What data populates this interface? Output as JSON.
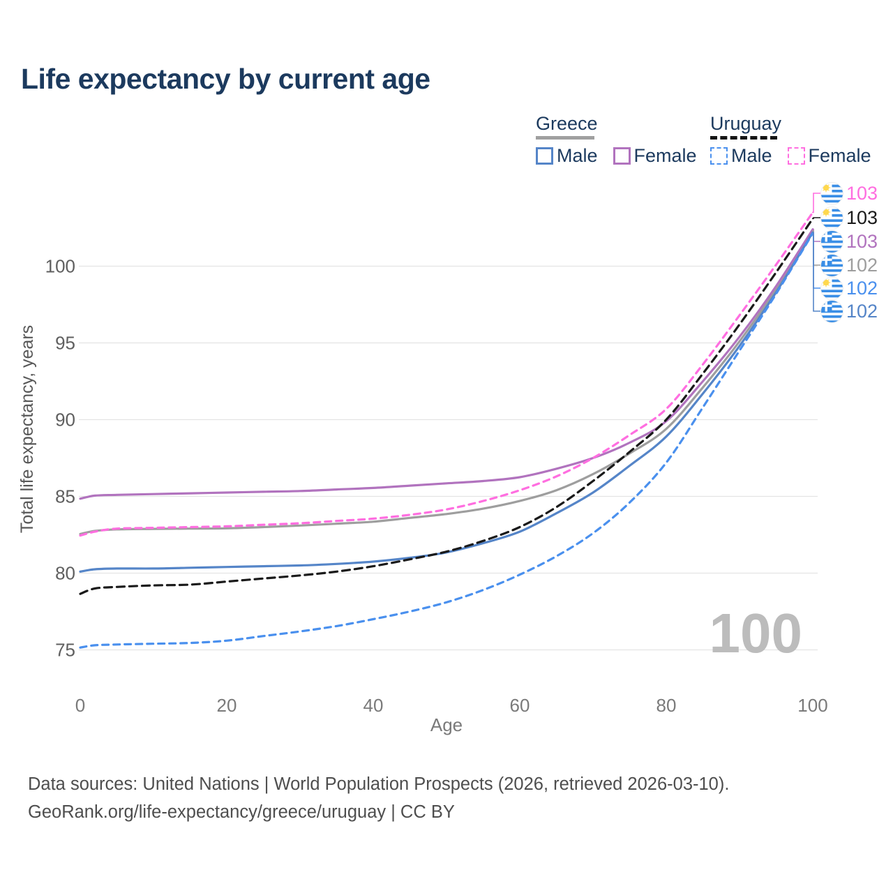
{
  "title": "Life expectancy by current age",
  "legend": {
    "groups": [
      {
        "country": "Greece",
        "line_style": "solid",
        "line_color": "#a0a0a0",
        "items": [
          {
            "label": "Male",
            "color": "#5585c8",
            "dashed": false
          },
          {
            "label": "Female",
            "color": "#b173be",
            "dashed": false
          }
        ]
      },
      {
        "country": "Uruguay",
        "line_style": "dashed",
        "line_color": "#141414",
        "items": [
          {
            "label": "Male",
            "color": "#4a90ee",
            "dashed": true
          },
          {
            "label": "Female",
            "color": "#ff6ee0",
            "dashed": true
          }
        ]
      }
    ]
  },
  "watermark_age": "100",
  "footer": {
    "line1": "Data sources: United Nations | World Population Prospects (2026, retrieved 2026-03-10).",
    "line2": "GeoRank.org/life-expectancy/greece/uruguay | CC BY"
  },
  "chart_data": {
    "type": "line",
    "title": "Life expectancy by current age",
    "xlabel": "Age",
    "ylabel": "Total life expectancy, years",
    "xlim": [
      0,
      100
    ],
    "ylim": [
      73.5,
      104.5
    ],
    "x_ticks": [
      0,
      20,
      40,
      60,
      80,
      100
    ],
    "y_ticks": [
      75,
      80,
      85,
      90,
      95,
      100
    ],
    "grid": "horizontal-only",
    "legend_position": "top-right",
    "x": [
      0,
      2,
      5,
      10,
      15,
      20,
      25,
      30,
      35,
      40,
      45,
      50,
      55,
      60,
      65,
      70,
      75,
      80,
      85,
      90,
      95,
      100
    ],
    "series": [
      {
        "name": "Uruguay Female",
        "country": "Uruguay",
        "sex": "Female",
        "color": "#ff6ee0",
        "dash": true,
        "end_label": "103",
        "flag": "uruguay",
        "values": [
          82.45,
          82.7,
          82.9,
          82.95,
          83.0,
          83.05,
          83.15,
          83.25,
          83.4,
          83.55,
          83.8,
          84.15,
          84.7,
          85.4,
          86.3,
          87.5,
          89.0,
          90.7,
          93.6,
          96.8,
          100.1,
          103.5
        ]
      },
      {
        "name": "Uruguay",
        "country": "Uruguay",
        "sex": "Both",
        "color": "#1a1a1a",
        "dash": true,
        "end_label": "103",
        "flag": "uruguay",
        "values": [
          78.65,
          79.0,
          79.1,
          79.2,
          79.25,
          79.45,
          79.65,
          79.85,
          80.1,
          80.45,
          80.9,
          81.4,
          82.1,
          83.0,
          84.3,
          86.0,
          87.9,
          90.0,
          93.0,
          96.2,
          99.6,
          103.1
        ]
      },
      {
        "name": "Greece Female",
        "country": "Greece",
        "sex": "Female",
        "color": "#b173be",
        "dash": false,
        "end_label": "103",
        "flag": "greece",
        "values": [
          84.85,
          85.05,
          85.1,
          85.15,
          85.2,
          85.25,
          85.3,
          85.35,
          85.45,
          85.55,
          85.7,
          85.85,
          86.0,
          86.25,
          86.8,
          87.5,
          88.5,
          89.9,
          92.5,
          95.4,
          98.7,
          102.4
        ]
      },
      {
        "name": "Greece",
        "country": "Greece",
        "sex": "Both",
        "color": "#9e9e9e",
        "dash": false,
        "end_label": "102",
        "flag": "greece",
        "values": [
          82.55,
          82.75,
          82.85,
          82.88,
          82.9,
          82.92,
          83.0,
          83.1,
          83.22,
          83.35,
          83.6,
          83.85,
          84.2,
          84.7,
          85.4,
          86.45,
          87.8,
          89.4,
          92.1,
          95.1,
          98.5,
          102.3
        ]
      },
      {
        "name": "Uruguay Male",
        "country": "Uruguay",
        "sex": "Male",
        "color": "#4a90ee",
        "dash": true,
        "end_label": "102",
        "flag": "uruguay",
        "values": [
          75.15,
          75.3,
          75.35,
          75.4,
          75.45,
          75.6,
          75.9,
          76.2,
          76.55,
          77.0,
          77.5,
          78.1,
          78.9,
          79.9,
          81.1,
          82.6,
          84.6,
          87.2,
          90.8,
          94.5,
          98.2,
          102.15
        ]
      },
      {
        "name": "Greece Male",
        "country": "Greece",
        "sex": "Male",
        "color": "#5585c8",
        "dash": false,
        "end_label": "102",
        "flag": "greece",
        "values": [
          80.1,
          80.25,
          80.3,
          80.3,
          80.35,
          80.4,
          80.45,
          80.5,
          80.6,
          80.75,
          81.0,
          81.35,
          81.95,
          82.7,
          83.9,
          85.25,
          87.0,
          88.9,
          91.7,
          94.8,
          98.3,
          102.2
        ]
      }
    ]
  }
}
